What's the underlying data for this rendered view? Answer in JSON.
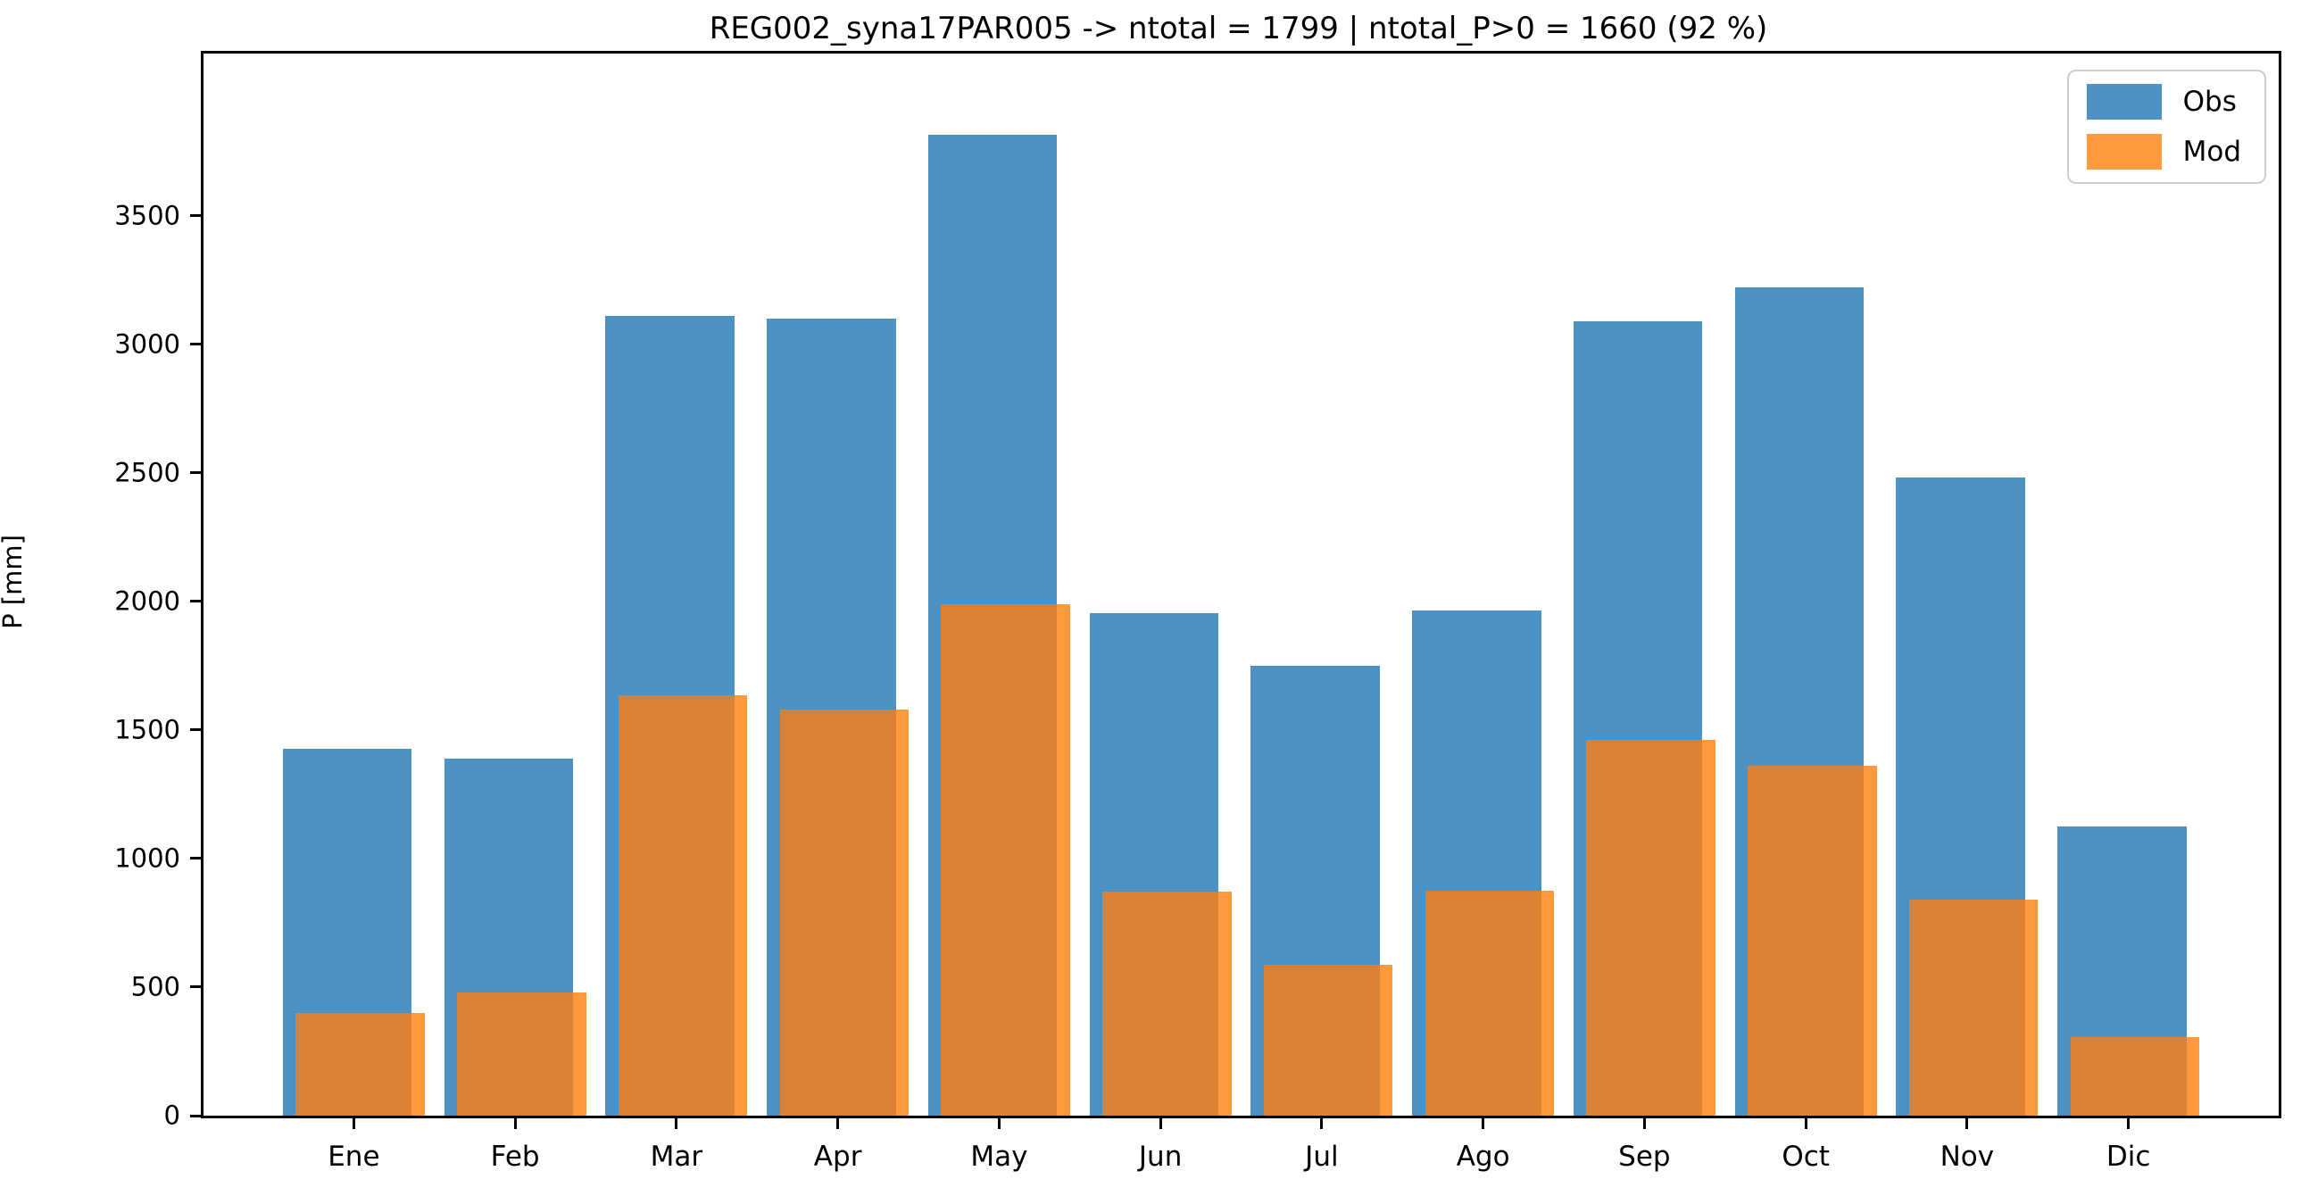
{
  "title": "REG002_syna17PAR005 -> ntotal = 1799 | ntotal_P>0 = 1660 (92 %)",
  "chart_data": {
    "type": "bar",
    "title": "REG002_syna17PAR005 -> ntotal = 1799 | ntotal_P>0 = 1660 (92 %)",
    "categories": [
      "Ene",
      "Feb",
      "Mar",
      "Apr",
      "May",
      "Jun",
      "Jul",
      "Ago",
      "Sep",
      "Oct",
      "Nov",
      "Dic"
    ],
    "series": [
      {
        "name": "Obs",
        "color": "#1f77b4",
        "alpha": 0.8,
        "values": [
          1425,
          1390,
          3110,
          3100,
          3815,
          1955,
          1750,
          1965,
          3090,
          3220,
          2480,
          1125
        ]
      },
      {
        "name": "Mod",
        "color": "#ff7f0e",
        "alpha": 0.8,
        "values": [
          400,
          480,
          1635,
          1580,
          1990,
          870,
          585,
          875,
          1460,
          1360,
          840,
          305
        ]
      }
    ],
    "xlabel": "",
    "ylabel": "P [mm]",
    "yticks": [
      0,
      500,
      1000,
      1500,
      2000,
      2500,
      3000,
      3500
    ],
    "ylim": [
      0,
      4130
    ],
    "grid": false,
    "legend_position": "upper right",
    "bar_overlap_note": "Mod bars drawn over Obs bars with slight rightward offset and 0.8 alpha"
  },
  "legend": {
    "items": [
      {
        "label": "Obs"
      },
      {
        "label": "Mod"
      }
    ]
  }
}
